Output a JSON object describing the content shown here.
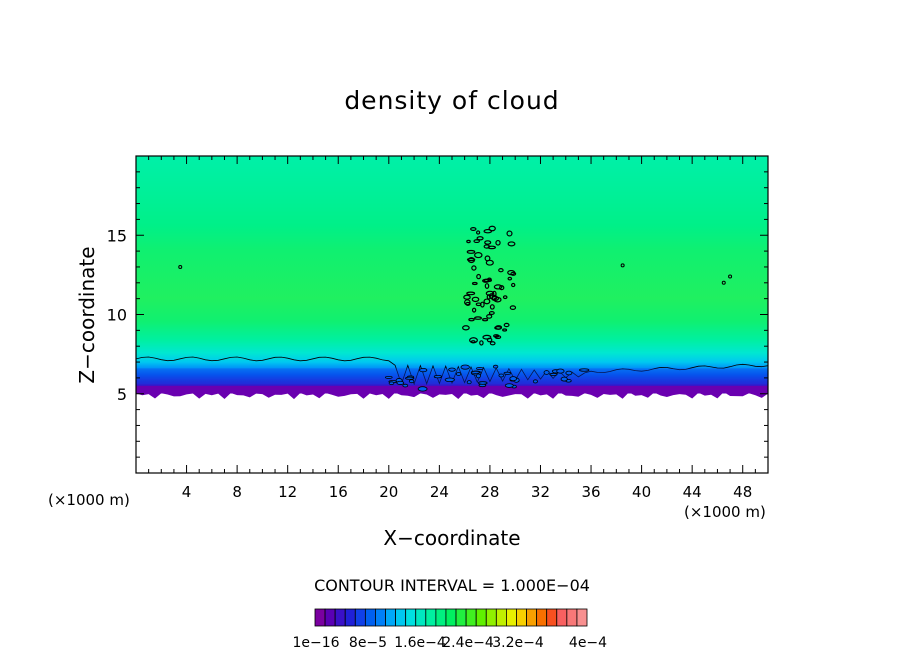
{
  "chart_data": {
    "type": "heatmap",
    "title": "density of cloud",
    "xlabel": "X−coordinate",
    "ylabel": "Z−coordinate",
    "x_unit": "(×1000 m)",
    "y_unit": "(×1000 m)",
    "xlim": [
      0,
      50
    ],
    "ylim": [
      0,
      20
    ],
    "x_ticks": [
      "4",
      "8",
      "12",
      "16",
      "20",
      "24",
      "28",
      "32",
      "36",
      "40",
      "44",
      "48"
    ],
    "y_ticks": [
      "5",
      "10",
      "15"
    ],
    "contour_interval_label": "CONTOUR INTERVAL = 1.000E−04",
    "colorbar": {
      "labels": [
        "1e−16",
        "8e−5",
        "1.6e−4",
        "2.4e−4",
        "3.2e−4",
        "4e−4"
      ],
      "colors": [
        "#7a00a0",
        "#5a00b4",
        "#3a10c8",
        "#2020d8",
        "#1040e8",
        "#0060f0",
        "#0080f8",
        "#00a8f8",
        "#00c8f0",
        "#00e0e0",
        "#00e8c0",
        "#00f0a0",
        "#00f080",
        "#00f060",
        "#20f040",
        "#40f020",
        "#60f000",
        "#90f000",
        "#c0f000",
        "#e8f000",
        "#f8d000",
        "#f8a000",
        "#f87000",
        "#f85020",
        "#f86060",
        "#f87878",
        "#f89090"
      ]
    },
    "field_summary": {
      "cloud_base_z": 5,
      "cloud_top_z": 20,
      "convective_tower_x": [
        26,
        30
      ],
      "convective_tower_top_z": 15.5
    }
  }
}
